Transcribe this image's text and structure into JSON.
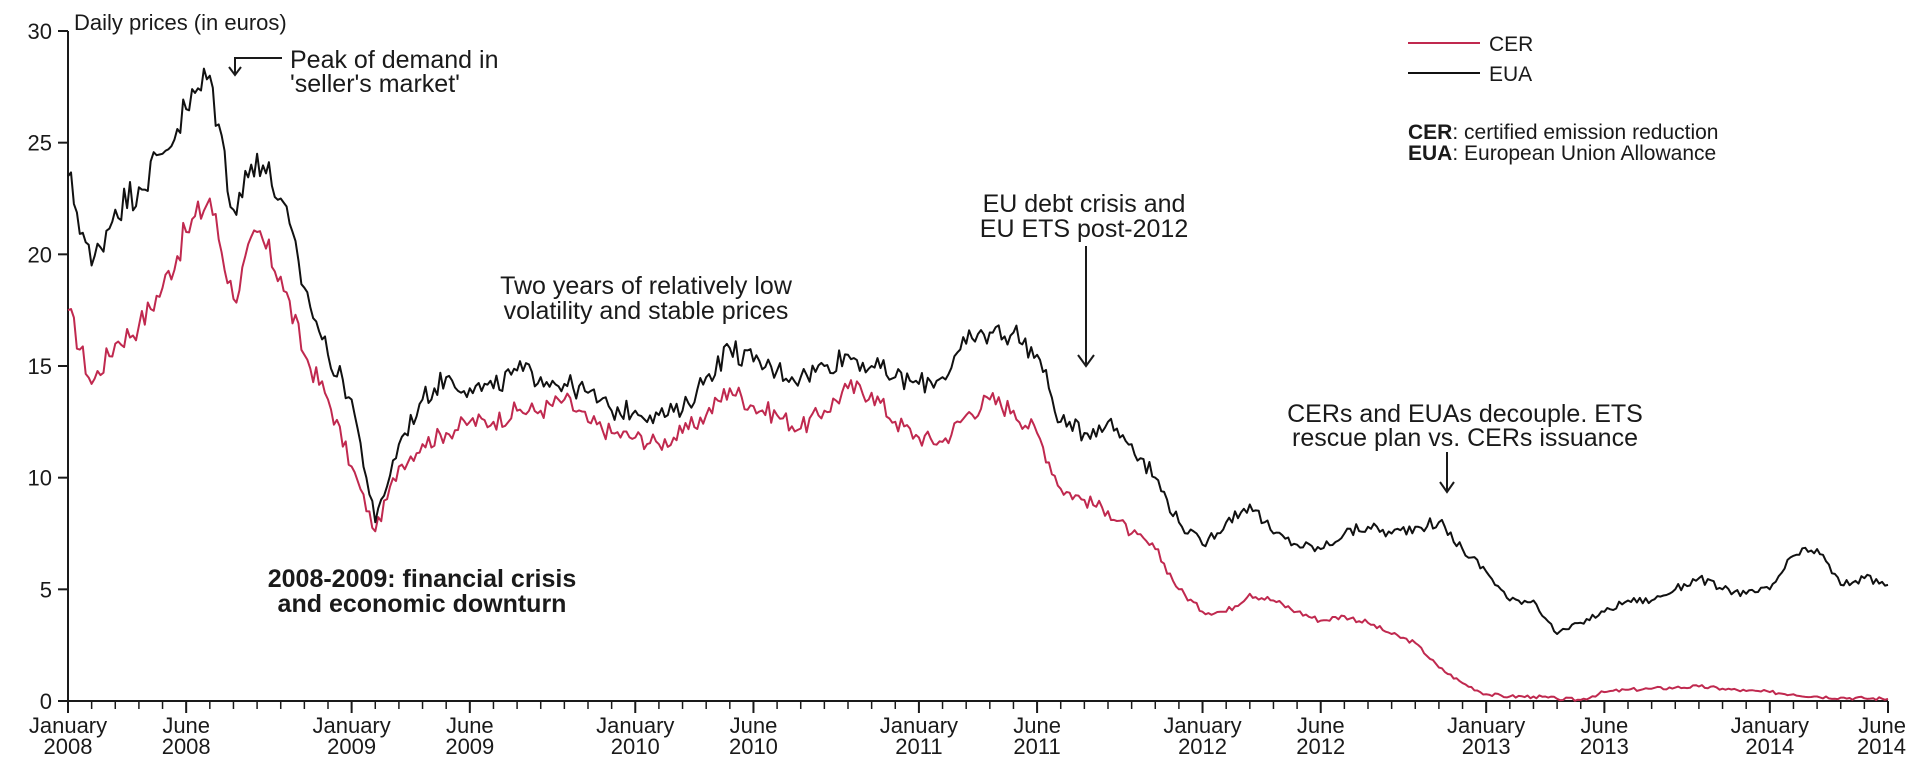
{
  "chart_data": {
    "type": "line",
    "ylabel": "Daily prices (in euros)",
    "ylim": [
      0,
      30
    ],
    "yticks": [
      0,
      5,
      10,
      15,
      20,
      25,
      30
    ],
    "xlim": [
      "2008-01",
      "2014-06"
    ],
    "x_tick_labels": [
      {
        "month": "January",
        "year": "2008",
        "date": "2008-01"
      },
      {
        "month": "June",
        "year": "2008",
        "date": "2008-06"
      },
      {
        "month": "January",
        "year": "2009",
        "date": "2009-01"
      },
      {
        "month": "June",
        "year": "2009",
        "date": "2009-06"
      },
      {
        "month": "January",
        "year": "2010",
        "date": "2010-01"
      },
      {
        "month": "June",
        "year": "2010",
        "date": "2010-06"
      },
      {
        "month": "January",
        "year": "2011",
        "date": "2011-01"
      },
      {
        "month": "June",
        "year": "2011",
        "date": "2011-06"
      },
      {
        "month": "January",
        "year": "2012",
        "date": "2012-01"
      },
      {
        "month": "June",
        "year": "2012",
        "date": "2012-06"
      },
      {
        "month": "January",
        "year": "2013",
        "date": "2013-01"
      },
      {
        "month": "June",
        "year": "2013",
        "date": "2013-06"
      },
      {
        "month": "January",
        "year": "2014",
        "date": "2014-01"
      },
      {
        "month": "June",
        "year": "2014",
        "date": "2014-06"
      }
    ],
    "legend_position": "top-right",
    "series": [
      {
        "name": "CER",
        "color": "#c0294f",
        "points": [
          [
            "2008-01",
            17.5
          ],
          [
            "2008-02",
            14.2
          ],
          [
            "2008-03",
            16.0
          ],
          [
            "2008-04",
            16.8
          ],
          [
            "2008-05",
            18.5
          ],
          [
            "2008-06",
            21.0
          ],
          [
            "2008-07",
            22.5
          ],
          [
            "2008-08",
            18.0
          ],
          [
            "2008-09",
            21.0
          ],
          [
            "2008-10",
            19.0
          ],
          [
            "2008-11",
            15.5
          ],
          [
            "2008-12",
            13.5
          ],
          [
            "2009-01",
            10.5
          ],
          [
            "2009-02",
            7.6
          ],
          [
            "2009-03",
            10.5
          ],
          [
            "2009-04",
            11.5
          ],
          [
            "2009-05",
            12.0
          ],
          [
            "2009-06",
            12.5
          ],
          [
            "2009-07",
            12.5
          ],
          [
            "2009-08",
            13.0
          ],
          [
            "2009-09",
            13.0
          ],
          [
            "2009-10",
            13.5
          ],
          [
            "2009-11",
            12.5
          ],
          [
            "2009-12",
            12.0
          ],
          [
            "2010-01",
            11.8
          ],
          [
            "2010-02",
            11.5
          ],
          [
            "2010-03",
            12.0
          ],
          [
            "2010-04",
            12.8
          ],
          [
            "2010-05",
            14.0
          ],
          [
            "2010-06",
            13.2
          ],
          [
            "2010-07",
            12.8
          ],
          [
            "2010-08",
            12.2
          ],
          [
            "2010-09",
            13.0
          ],
          [
            "2010-10",
            14.0
          ],
          [
            "2010-11",
            13.8
          ],
          [
            "2010-12",
            12.5
          ],
          [
            "2011-01",
            11.8
          ],
          [
            "2011-02",
            11.6
          ],
          [
            "2011-03",
            12.8
          ],
          [
            "2011-04",
            13.5
          ],
          [
            "2011-05",
            13.0
          ],
          [
            "2011-06",
            12.0
          ],
          [
            "2011-07",
            9.5
          ],
          [
            "2011-08",
            9.0
          ],
          [
            "2011-09",
            8.5
          ],
          [
            "2011-10",
            7.5
          ],
          [
            "2011-11",
            6.8
          ],
          [
            "2011-12",
            5.0
          ],
          [
            "2012-01",
            4.0
          ],
          [
            "2012-02",
            4.0
          ],
          [
            "2012-03",
            4.8
          ],
          [
            "2012-04",
            4.5
          ],
          [
            "2012-05",
            4.0
          ],
          [
            "2012-06",
            3.6
          ],
          [
            "2012-07",
            3.8
          ],
          [
            "2012-08",
            3.5
          ],
          [
            "2012-09",
            3.0
          ],
          [
            "2012-10",
            2.6
          ],
          [
            "2012-11",
            1.5
          ],
          [
            "2012-12",
            0.8
          ],
          [
            "2013-01",
            0.3
          ],
          [
            "2013-02",
            0.2
          ],
          [
            "2013-03",
            0.2
          ],
          [
            "2013-04",
            0.1
          ],
          [
            "2013-05",
            0.05
          ],
          [
            "2013-06",
            0.4
          ],
          [
            "2013-07",
            0.5
          ],
          [
            "2013-08",
            0.55
          ],
          [
            "2013-09",
            0.6
          ],
          [
            "2013-10",
            0.65
          ],
          [
            "2013-11",
            0.55
          ],
          [
            "2013-12",
            0.45
          ],
          [
            "2014-01",
            0.4
          ],
          [
            "2014-02",
            0.3
          ],
          [
            "2014-03",
            0.2
          ],
          [
            "2014-04",
            0.15
          ],
          [
            "2014-05",
            0.12
          ],
          [
            "2014-06",
            0.1
          ]
        ]
      },
      {
        "name": "EUA",
        "color": "#111111",
        "points": [
          [
            "2008-01",
            23.5
          ],
          [
            "2008-02",
            19.5
          ],
          [
            "2008-03",
            22.0
          ],
          [
            "2008-04",
            23.0
          ],
          [
            "2008-05",
            24.5
          ],
          [
            "2008-06",
            26.5
          ],
          [
            "2008-07",
            28.0
          ],
          [
            "2008-08",
            22.0
          ],
          [
            "2008-09",
            24.5
          ],
          [
            "2008-10",
            22.5
          ],
          [
            "2008-11",
            18.5
          ],
          [
            "2008-12",
            15.5
          ],
          [
            "2009-01",
            13.5
          ],
          [
            "2009-02",
            8.0
          ],
          [
            "2009-03",
            11.5
          ],
          [
            "2009-04",
            13.5
          ],
          [
            "2009-05",
            14.5
          ],
          [
            "2009-06",
            14.0
          ],
          [
            "2009-07",
            14.0
          ],
          [
            "2009-08",
            14.8
          ],
          [
            "2009-09",
            14.5
          ],
          [
            "2009-10",
            14.2
          ],
          [
            "2009-11",
            13.8
          ],
          [
            "2009-12",
            13.0
          ],
          [
            "2010-01",
            13.0
          ],
          [
            "2010-02",
            12.8
          ],
          [
            "2010-03",
            13.0
          ],
          [
            "2010-04",
            14.5
          ],
          [
            "2010-05",
            15.8
          ],
          [
            "2010-06",
            15.2
          ],
          [
            "2010-07",
            14.8
          ],
          [
            "2010-08",
            14.5
          ],
          [
            "2010-09",
            15.0
          ],
          [
            "2010-10",
            15.5
          ],
          [
            "2010-11",
            15.0
          ],
          [
            "2010-12",
            14.5
          ],
          [
            "2011-01",
            14.2
          ],
          [
            "2011-02",
            14.5
          ],
          [
            "2011-03",
            16.0
          ],
          [
            "2011-04",
            16.5
          ],
          [
            "2011-05",
            16.5
          ],
          [
            "2011-06",
            15.5
          ],
          [
            "2011-07",
            12.5
          ],
          [
            "2011-08",
            12.0
          ],
          [
            "2011-09",
            12.5
          ],
          [
            "2011-10",
            11.5
          ],
          [
            "2011-11",
            10.0
          ],
          [
            "2011-12",
            8.0
          ],
          [
            "2012-01",
            7.0
          ],
          [
            "2012-02",
            8.0
          ],
          [
            "2012-03",
            8.8
          ],
          [
            "2012-04",
            7.5
          ],
          [
            "2012-05",
            7.0
          ],
          [
            "2012-06",
            6.8
          ],
          [
            "2012-07",
            7.5
          ],
          [
            "2012-08",
            7.8
          ],
          [
            "2012-09",
            7.5
          ],
          [
            "2012-10",
            7.8
          ],
          [
            "2012-11",
            8.0
          ],
          [
            "2012-12",
            6.8
          ],
          [
            "2013-01",
            5.8
          ],
          [
            "2013-02",
            4.5
          ],
          [
            "2013-03",
            4.5
          ],
          [
            "2013-04",
            3.0
          ],
          [
            "2013-05",
            3.5
          ],
          [
            "2013-06",
            4.0
          ],
          [
            "2013-07",
            4.5
          ],
          [
            "2013-08",
            4.5
          ],
          [
            "2013-09",
            5.0
          ],
          [
            "2013-10",
            5.5
          ],
          [
            "2013-11",
            5.0
          ],
          [
            "2013-12",
            4.8
          ],
          [
            "2014-01",
            5.0
          ],
          [
            "2014-02",
            6.5
          ],
          [
            "2014-03",
            6.8
          ],
          [
            "2014-04",
            5.2
          ],
          [
            "2014-05",
            5.5
          ],
          [
            "2014-06",
            5.2
          ]
        ]
      }
    ],
    "legend": {
      "items": [
        {
          "label": "CER",
          "color": "#c0294f"
        },
        {
          "label": "EUA",
          "color": "#111111"
        }
      ],
      "definitions": [
        {
          "term": "CER",
          "text": ": certified emission reduction"
        },
        {
          "term": "EUA",
          "text": ": European Union Allowance"
        }
      ]
    },
    "annotations": {
      "peak_line1": "Peak of demand in",
      "peak_line2": "'seller's market'",
      "crisis_line1": "2008-2009: financial crisis",
      "crisis_line2": "and economic downturn",
      "lowvol_line1": "Two years of relatively low",
      "lowvol_line2": "volatility and stable prices",
      "debt_line1": "EU debt crisis and",
      "debt_line2": "EU ETS post-2012",
      "decouple_line1": "CERs and EUAs decouple. ETS",
      "decouple_line2": "rescue plan vs. CERs issuance"
    }
  }
}
